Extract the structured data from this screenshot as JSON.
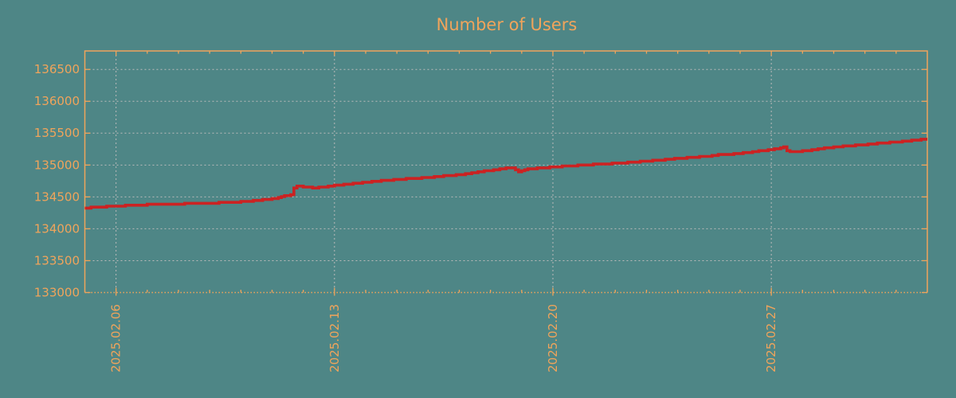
{
  "colors": {
    "background": "#4e8686",
    "axis": "#f0a45b",
    "grid": "#bababa",
    "line": "#cc2222",
    "title_text": "#f0a45b"
  },
  "chart_data": {
    "type": "line",
    "title": "Number of Users",
    "xlabel": "",
    "ylabel": "",
    "grid": true,
    "legend_position": "none",
    "x_axis": {
      "start_date": "2025-02-05",
      "range_days": [
        0,
        27
      ],
      "tick_positions_days": [
        1,
        8,
        15,
        22
      ],
      "tick_labels": [
        "2025.02.06",
        "2025.02.13",
        "2025.02.20",
        "2025.02.27"
      ],
      "minor_tick_interval_days": 1,
      "tick_label_rotation_deg": -90
    },
    "y_axis": {
      "range": [
        133000,
        136790
      ],
      "tick_values": [
        133000,
        133500,
        134000,
        134500,
        135000,
        135500,
        136000,
        136500
      ],
      "tick_labels": [
        "133000",
        "133500",
        "134000",
        "134500",
        "135000",
        "135500",
        "136000",
        "136500"
      ]
    },
    "series": [
      {
        "name": "Number of Users",
        "color": "#cc2222",
        "x_unit": "days_from_2025-02-05",
        "points": [
          [
            0,
            134330
          ],
          [
            0.5,
            134342
          ],
          [
            1,
            134356
          ],
          [
            1.5,
            134367
          ],
          [
            2,
            134378
          ],
          [
            2.5,
            134385
          ],
          [
            3,
            134391
          ],
          [
            3.5,
            134396
          ],
          [
            4,
            134403
          ],
          [
            4.5,
            134412
          ],
          [
            5,
            134424
          ],
          [
            5.5,
            134444
          ],
          [
            6,
            134468
          ],
          [
            6.3,
            134505
          ],
          [
            6.62,
            134540
          ],
          [
            6.72,
            134668
          ],
          [
            6.85,
            134678
          ],
          [
            7.1,
            134652
          ],
          [
            7.35,
            134645
          ],
          [
            7.6,
            134656
          ],
          [
            8,
            134678
          ],
          [
            8.5,
            134706
          ],
          [
            9,
            134733
          ],
          [
            9.5,
            134755
          ],
          [
            10,
            134772
          ],
          [
            10.5,
            134790
          ],
          [
            11,
            134806
          ],
          [
            11.5,
            134828
          ],
          [
            12,
            134850
          ],
          [
            12.5,
            134882
          ],
          [
            13,
            134917
          ],
          [
            13.55,
            134952
          ],
          [
            13.67,
            134958
          ],
          [
            13.9,
            134895
          ],
          [
            14.2,
            134940
          ],
          [
            14.6,
            134953
          ],
          [
            15,
            134970
          ],
          [
            15.5,
            134986
          ],
          [
            16,
            135000
          ],
          [
            16.5,
            135013
          ],
          [
            17,
            135026
          ],
          [
            17.5,
            135042
          ],
          [
            18,
            135060
          ],
          [
            18.5,
            135080
          ],
          [
            19,
            135102
          ],
          [
            19.5,
            135122
          ],
          [
            20,
            135142
          ],
          [
            20.25,
            135158
          ],
          [
            20.6,
            135164
          ],
          [
            21,
            135186
          ],
          [
            21.5,
            135212
          ],
          [
            22,
            135240
          ],
          [
            22.4,
            135280
          ],
          [
            22.55,
            135206
          ],
          [
            22.85,
            135211
          ],
          [
            23,
            135218
          ],
          [
            23.5,
            135252
          ],
          [
            24,
            135280
          ],
          [
            24.5,
            135302
          ],
          [
            25,
            135322
          ],
          [
            25.5,
            135342
          ],
          [
            26,
            135363
          ],
          [
            26.5,
            135385
          ],
          [
            27,
            135408
          ]
        ]
      }
    ]
  }
}
